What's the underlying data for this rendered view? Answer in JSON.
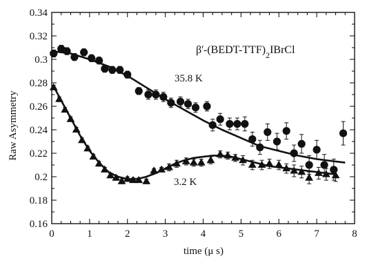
{
  "chart_data": {
    "type": "scatter",
    "title_segments": [
      "β'-(BEDT-TTF)",
      "2",
      "IBrCl"
    ],
    "xlabel": "time  (μ s)",
    "ylabel": "Raw Asymmetry",
    "xlim": [
      0,
      8
    ],
    "ylim": [
      0.16,
      0.34
    ],
    "x_ticks": [
      "0",
      "1",
      "2",
      "3",
      "4",
      "5",
      "6",
      "7",
      "8"
    ],
    "y_ticks": [
      "0.16",
      "0.18",
      "0.2",
      "0.22",
      "0.24",
      "0.26",
      "0.28",
      "0.3",
      "0.32",
      "0.34"
    ],
    "grid": false,
    "legend": "none",
    "annotations": [
      {
        "text": "35.8 K",
        "series": 0
      },
      {
        "text": "3.2 K",
        "series": 1
      }
    ],
    "series": [
      {
        "marker": "circle",
        "points": [
          {
            "x": 0.05,
            "y": 0.305,
            "err": 0.003
          },
          {
            "x": 0.25,
            "y": 0.309,
            "err": 0.003
          },
          {
            "x": 0.4,
            "y": 0.307,
            "err": 0.003
          },
          {
            "x": 0.6,
            "y": 0.302,
            "err": 0.003
          },
          {
            "x": 0.85,
            "y": 0.306,
            "err": 0.003
          },
          {
            "x": 1.05,
            "y": 0.301,
            "err": 0.003
          },
          {
            "x": 1.25,
            "y": 0.299,
            "err": 0.003
          },
          {
            "x": 1.4,
            "y": 0.292,
            "err": 0.003
          },
          {
            "x": 1.6,
            "y": 0.291,
            "err": 0.003
          },
          {
            "x": 1.8,
            "y": 0.291,
            "err": 0.003
          },
          {
            "x": 2.0,
            "y": 0.287,
            "err": 0.003
          },
          {
            "x": 2.3,
            "y": 0.273,
            "err": 0.003
          },
          {
            "x": 2.55,
            "y": 0.27,
            "err": 0.004
          },
          {
            "x": 2.75,
            "y": 0.27,
            "err": 0.004
          },
          {
            "x": 2.95,
            "y": 0.268,
            "err": 0.004
          },
          {
            "x": 3.15,
            "y": 0.263,
            "err": 0.004
          },
          {
            "x": 3.4,
            "y": 0.264,
            "err": 0.004
          },
          {
            "x": 3.6,
            "y": 0.262,
            "err": 0.004
          },
          {
            "x": 3.8,
            "y": 0.259,
            "err": 0.004
          },
          {
            "x": 4.1,
            "y": 0.26,
            "err": 0.004
          },
          {
            "x": 4.25,
            "y": 0.244,
            "err": 0.005
          },
          {
            "x": 4.45,
            "y": 0.249,
            "err": 0.005
          },
          {
            "x": 4.7,
            "y": 0.245,
            "err": 0.005
          },
          {
            "x": 4.9,
            "y": 0.245,
            "err": 0.005
          },
          {
            "x": 5.1,
            "y": 0.245,
            "err": 0.006
          },
          {
            "x": 5.3,
            "y": 0.232,
            "err": 0.006
          },
          {
            "x": 5.5,
            "y": 0.225,
            "err": 0.006
          },
          {
            "x": 5.7,
            "y": 0.238,
            "err": 0.007
          },
          {
            "x": 5.95,
            "y": 0.23,
            "err": 0.007
          },
          {
            "x": 6.2,
            "y": 0.239,
            "err": 0.007
          },
          {
            "x": 6.4,
            "y": 0.22,
            "err": 0.007
          },
          {
            "x": 6.6,
            "y": 0.228,
            "err": 0.008
          },
          {
            "x": 6.8,
            "y": 0.21,
            "err": 0.008
          },
          {
            "x": 7.0,
            "y": 0.223,
            "err": 0.008
          },
          {
            "x": 7.2,
            "y": 0.21,
            "err": 0.009
          },
          {
            "x": 7.45,
            "y": 0.206,
            "err": 0.009
          },
          {
            "x": 7.7,
            "y": 0.237,
            "err": 0.01
          }
        ],
        "fit": [
          [
            0,
            0.307
          ],
          [
            0.5,
            0.305
          ],
          [
            1.0,
            0.3
          ],
          [
            1.5,
            0.294
          ],
          [
            2.0,
            0.286
          ],
          [
            2.5,
            0.276
          ],
          [
            3.0,
            0.266
          ],
          [
            3.5,
            0.257
          ],
          [
            4.0,
            0.248
          ],
          [
            4.5,
            0.24
          ],
          [
            5.0,
            0.233
          ],
          [
            5.5,
            0.226
          ],
          [
            6.0,
            0.222
          ],
          [
            6.5,
            0.218
          ],
          [
            7.0,
            0.215
          ],
          [
            7.5,
            0.213
          ],
          [
            7.75,
            0.212
          ]
        ]
      },
      {
        "marker": "triangle",
        "points": [
          {
            "x": 0.05,
            "y": 0.276,
            "err": 0.002
          },
          {
            "x": 0.2,
            "y": 0.266,
            "err": 0.002
          },
          {
            "x": 0.35,
            "y": 0.257,
            "err": 0.002
          },
          {
            "x": 0.5,
            "y": 0.249,
            "err": 0.002
          },
          {
            "x": 0.65,
            "y": 0.24,
            "err": 0.002
          },
          {
            "x": 0.8,
            "y": 0.231,
            "err": 0.002
          },
          {
            "x": 0.95,
            "y": 0.224,
            "err": 0.002
          },
          {
            "x": 1.1,
            "y": 0.217,
            "err": 0.002
          },
          {
            "x": 1.25,
            "y": 0.211,
            "err": 0.002
          },
          {
            "x": 1.4,
            "y": 0.206,
            "err": 0.002
          },
          {
            "x": 1.55,
            "y": 0.201,
            "err": 0.002
          },
          {
            "x": 1.7,
            "y": 0.199,
            "err": 0.002
          },
          {
            "x": 1.85,
            "y": 0.196,
            "err": 0.002
          },
          {
            "x": 2.0,
            "y": 0.198,
            "err": 0.002
          },
          {
            "x": 2.15,
            "y": 0.197,
            "err": 0.002
          },
          {
            "x": 2.3,
            "y": 0.197,
            "err": 0.002
          },
          {
            "x": 2.5,
            "y": 0.196,
            "err": 0.002
          },
          {
            "x": 2.7,
            "y": 0.205,
            "err": 0.002
          },
          {
            "x": 2.9,
            "y": 0.206,
            "err": 0.002
          },
          {
            "x": 3.1,
            "y": 0.208,
            "err": 0.003
          },
          {
            "x": 3.3,
            "y": 0.211,
            "err": 0.003
          },
          {
            "x": 3.55,
            "y": 0.213,
            "err": 0.003
          },
          {
            "x": 3.75,
            "y": 0.212,
            "err": 0.003
          },
          {
            "x": 3.95,
            "y": 0.212,
            "err": 0.003
          },
          {
            "x": 4.2,
            "y": 0.214,
            "err": 0.003
          },
          {
            "x": 4.45,
            "y": 0.219,
            "err": 0.003
          },
          {
            "x": 4.65,
            "y": 0.218,
            "err": 0.003
          },
          {
            "x": 4.85,
            "y": 0.216,
            "err": 0.003
          },
          {
            "x": 5.05,
            "y": 0.214,
            "err": 0.004
          },
          {
            "x": 5.3,
            "y": 0.21,
            "err": 0.004
          },
          {
            "x": 5.55,
            "y": 0.21,
            "err": 0.004
          },
          {
            "x": 5.75,
            "y": 0.211,
            "err": 0.004
          },
          {
            "x": 6.0,
            "y": 0.21,
            "err": 0.004
          },
          {
            "x": 6.2,
            "y": 0.207,
            "err": 0.004
          },
          {
            "x": 6.4,
            "y": 0.205,
            "err": 0.005
          },
          {
            "x": 6.6,
            "y": 0.204,
            "err": 0.005
          },
          {
            "x": 6.8,
            "y": 0.199,
            "err": 0.005
          },
          {
            "x": 7.05,
            "y": 0.203,
            "err": 0.005
          },
          {
            "x": 7.25,
            "y": 0.202,
            "err": 0.005
          },
          {
            "x": 7.5,
            "y": 0.201,
            "err": 0.005
          }
        ],
        "fit": [
          [
            0.05,
            0.277
          ],
          [
            0.25,
            0.265
          ],
          [
            0.5,
            0.25
          ],
          [
            0.75,
            0.235
          ],
          [
            1.0,
            0.222
          ],
          [
            1.25,
            0.212
          ],
          [
            1.5,
            0.204
          ],
          [
            1.75,
            0.2
          ],
          [
            2.0,
            0.198
          ],
          [
            2.25,
            0.198
          ],
          [
            2.5,
            0.2
          ],
          [
            2.75,
            0.203
          ],
          [
            3.0,
            0.207
          ],
          [
            3.25,
            0.211
          ],
          [
            3.5,
            0.214
          ],
          [
            3.75,
            0.216
          ],
          [
            4.0,
            0.217
          ],
          [
            4.25,
            0.218
          ],
          [
            4.5,
            0.218
          ],
          [
            4.75,
            0.217
          ],
          [
            5.0,
            0.215
          ],
          [
            5.25,
            0.213
          ],
          [
            5.5,
            0.211
          ],
          [
            5.75,
            0.209
          ],
          [
            6.0,
            0.208
          ],
          [
            6.25,
            0.207
          ],
          [
            6.5,
            0.206
          ],
          [
            6.75,
            0.205
          ],
          [
            7.0,
            0.204
          ],
          [
            7.25,
            0.203
          ],
          [
            7.5,
            0.202
          ]
        ]
      }
    ]
  }
}
